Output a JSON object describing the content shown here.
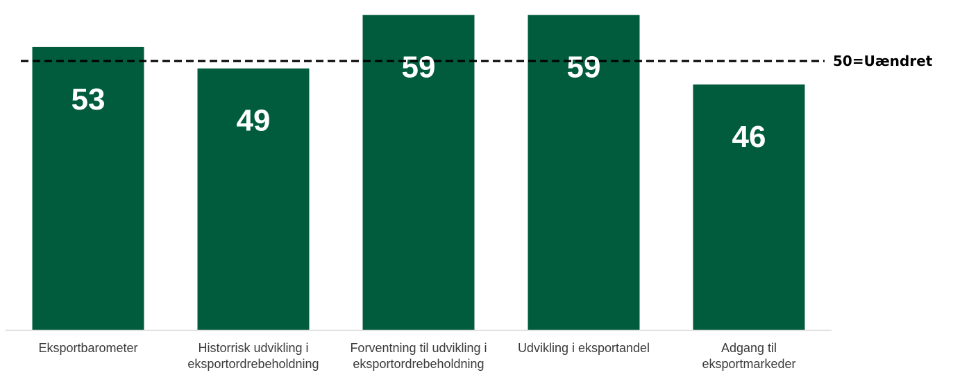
{
  "chart_data": {
    "type": "bar",
    "categories": [
      "Eksportbarometer",
      "Historrisk udvikling i eksportordrebeholdning",
      "Forventning til udvikling i eksportordrebeholdning",
      "Udvikling i eksportandel",
      "Adgang til eksportmarkeder"
    ],
    "category_lines": [
      [
        "Eksportbarometer"
      ],
      [
        "Historrisk udvikling i",
        "eksportordrebeholdning"
      ],
      [
        "Forventning til udvikling i",
        "eksportordrebeholdning"
      ],
      [
        "Udvikling i eksportandel"
      ],
      [
        "Adgang til",
        "eksportmarkeder"
      ]
    ],
    "values": [
      53,
      49,
      59,
      59,
      46
    ],
    "data_labels": [
      "53",
      "49",
      "59",
      "59",
      "46"
    ],
    "reference_line": {
      "value": 50,
      "label": "50=Uændret",
      "style": "dashed",
      "color": "#000000"
    },
    "bar_color": "#005c3c",
    "data_label_color": "#ffffff",
    "axis_color": "#d9d9d9",
    "title": "",
    "xlabel": "",
    "ylabel": "",
    "ylim": [
      0,
      60
    ],
    "grid": false,
    "legend": "none"
  }
}
